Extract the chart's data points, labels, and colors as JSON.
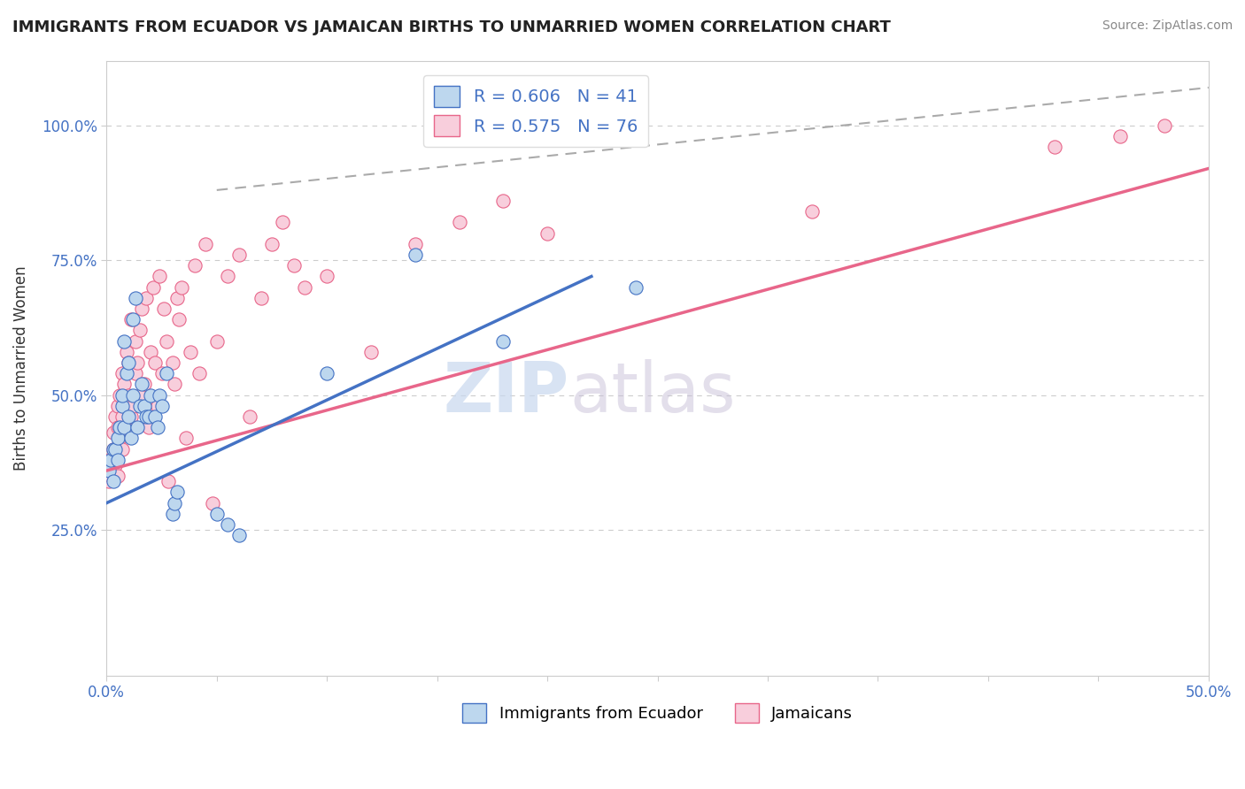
{
  "title": "IMMIGRANTS FROM ECUADOR VS JAMAICAN BIRTHS TO UNMARRIED WOMEN CORRELATION CHART",
  "source": "Source: ZipAtlas.com",
  "xlabel": "",
  "ylabel": "Births to Unmarried Women",
  "xlim": [
    0.0,
    0.5
  ],
  "ylim": [
    -0.02,
    1.12
  ],
  "xticks": [
    0.0,
    0.05,
    0.1,
    0.15,
    0.2,
    0.25,
    0.3,
    0.35,
    0.4,
    0.45,
    0.5
  ],
  "xtick_labels": [
    "0.0%",
    "",
    "",
    "",
    "",
    "",
    "",
    "",
    "",
    "",
    "50.0%"
  ],
  "yticks": [
    0.25,
    0.5,
    0.75,
    1.0
  ],
  "ytick_labels": [
    "25.0%",
    "50.0%",
    "75.0%",
    "100.0%"
  ],
  "r_blue": 0.606,
  "n_blue": 41,
  "r_pink": 0.575,
  "n_pink": 76,
  "legend_label_blue": "Immigrants from Ecuador",
  "legend_label_pink": "Jamaicans",
  "blue_fill_color": "#BDD7EE",
  "pink_fill_color": "#F8CEDC",
  "blue_edge_color": "#4472C4",
  "pink_edge_color": "#E8668A",
  "blue_line_color": "#4472C4",
  "pink_line_color": "#E8668A",
  "blue_scatter": [
    [
      0.001,
      0.36
    ],
    [
      0.002,
      0.38
    ],
    [
      0.003,
      0.34
    ],
    [
      0.003,
      0.4
    ],
    [
      0.004,
      0.4
    ],
    [
      0.005,
      0.42
    ],
    [
      0.005,
      0.38
    ],
    [
      0.006,
      0.44
    ],
    [
      0.007,
      0.48
    ],
    [
      0.007,
      0.5
    ],
    [
      0.008,
      0.44
    ],
    [
      0.008,
      0.6
    ],
    [
      0.009,
      0.54
    ],
    [
      0.01,
      0.56
    ],
    [
      0.01,
      0.46
    ],
    [
      0.011,
      0.42
    ],
    [
      0.012,
      0.64
    ],
    [
      0.012,
      0.5
    ],
    [
      0.013,
      0.68
    ],
    [
      0.014,
      0.44
    ],
    [
      0.015,
      0.48
    ],
    [
      0.016,
      0.52
    ],
    [
      0.017,
      0.48
    ],
    [
      0.018,
      0.46
    ],
    [
      0.019,
      0.46
    ],
    [
      0.02,
      0.5
    ],
    [
      0.022,
      0.46
    ],
    [
      0.023,
      0.44
    ],
    [
      0.024,
      0.5
    ],
    [
      0.025,
      0.48
    ],
    [
      0.027,
      0.54
    ],
    [
      0.03,
      0.28
    ],
    [
      0.031,
      0.3
    ],
    [
      0.032,
      0.32
    ],
    [
      0.05,
      0.28
    ],
    [
      0.055,
      0.26
    ],
    [
      0.06,
      0.24
    ],
    [
      0.1,
      0.54
    ],
    [
      0.14,
      0.76
    ],
    [
      0.18,
      0.6
    ],
    [
      0.24,
      0.7
    ]
  ],
  "pink_scatter": [
    [
      0.001,
      0.34
    ],
    [
      0.001,
      0.38
    ],
    [
      0.002,
      0.35
    ],
    [
      0.002,
      0.37
    ],
    [
      0.003,
      0.36
    ],
    [
      0.003,
      0.4
    ],
    [
      0.003,
      0.43
    ],
    [
      0.004,
      0.38
    ],
    [
      0.004,
      0.37
    ],
    [
      0.004,
      0.46
    ],
    [
      0.005,
      0.35
    ],
    [
      0.005,
      0.44
    ],
    [
      0.005,
      0.48
    ],
    [
      0.006,
      0.44
    ],
    [
      0.006,
      0.5
    ],
    [
      0.006,
      0.42
    ],
    [
      0.007,
      0.54
    ],
    [
      0.007,
      0.46
    ],
    [
      0.007,
      0.4
    ],
    [
      0.008,
      0.48
    ],
    [
      0.008,
      0.52
    ],
    [
      0.009,
      0.44
    ],
    [
      0.009,
      0.58
    ],
    [
      0.01,
      0.5
    ],
    [
      0.01,
      0.56
    ],
    [
      0.011,
      0.46
    ],
    [
      0.011,
      0.64
    ],
    [
      0.012,
      0.48
    ],
    [
      0.013,
      0.54
    ],
    [
      0.013,
      0.6
    ],
    [
      0.014,
      0.56
    ],
    [
      0.015,
      0.5
    ],
    [
      0.015,
      0.62
    ],
    [
      0.016,
      0.66
    ],
    [
      0.017,
      0.52
    ],
    [
      0.018,
      0.68
    ],
    [
      0.019,
      0.44
    ],
    [
      0.02,
      0.58
    ],
    [
      0.021,
      0.7
    ],
    [
      0.022,
      0.56
    ],
    [
      0.023,
      0.48
    ],
    [
      0.024,
      0.72
    ],
    [
      0.025,
      0.54
    ],
    [
      0.026,
      0.66
    ],
    [
      0.027,
      0.6
    ],
    [
      0.028,
      0.34
    ],
    [
      0.03,
      0.56
    ],
    [
      0.031,
      0.52
    ],
    [
      0.032,
      0.68
    ],
    [
      0.033,
      0.64
    ],
    [
      0.034,
      0.7
    ],
    [
      0.036,
      0.42
    ],
    [
      0.038,
      0.58
    ],
    [
      0.04,
      0.74
    ],
    [
      0.042,
      0.54
    ],
    [
      0.045,
      0.78
    ],
    [
      0.048,
      0.3
    ],
    [
      0.05,
      0.6
    ],
    [
      0.055,
      0.72
    ],
    [
      0.06,
      0.76
    ],
    [
      0.065,
      0.46
    ],
    [
      0.07,
      0.68
    ],
    [
      0.075,
      0.78
    ],
    [
      0.08,
      0.82
    ],
    [
      0.085,
      0.74
    ],
    [
      0.09,
      0.7
    ],
    [
      0.1,
      0.72
    ],
    [
      0.12,
      0.58
    ],
    [
      0.14,
      0.78
    ],
    [
      0.16,
      0.82
    ],
    [
      0.18,
      0.86
    ],
    [
      0.2,
      0.8
    ],
    [
      0.32,
      0.84
    ],
    [
      0.43,
      0.96
    ],
    [
      0.46,
      0.98
    ],
    [
      0.48,
      1.0
    ]
  ],
  "blue_line_x": [
    0.0,
    0.22
  ],
  "blue_line_y": [
    0.3,
    0.72
  ],
  "pink_line_x": [
    0.0,
    0.5
  ],
  "pink_line_y": [
    0.36,
    0.92
  ],
  "diag_line_x": [
    0.05,
    0.5
  ],
  "diag_line_y": [
    0.88,
    1.07
  ],
  "watermark_zip": "ZIP",
  "watermark_atlas": "atlas",
  "background_color": "#FFFFFF",
  "grid_color": "#CCCCCC"
}
